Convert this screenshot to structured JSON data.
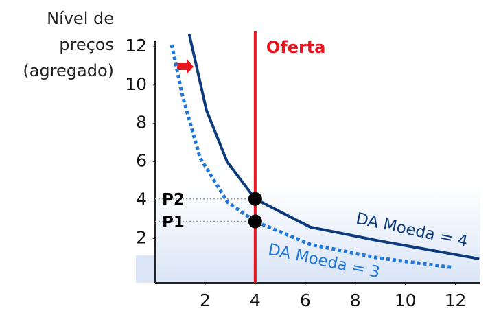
{
  "chart_data": {
    "type": "line",
    "ylabel": [
      "Nível de",
      "preços",
      "(agregado)"
    ],
    "xlim": [
      0,
      13
    ],
    "ylim": [
      -0.3,
      12.6
    ],
    "xticks": [
      2,
      4,
      6,
      8,
      10,
      12
    ],
    "yticks": [
      2,
      4,
      6,
      8,
      10,
      12
    ],
    "series": [
      {
        "name": "DA Moeda = 4",
        "color": "#0d3a7a",
        "dashed": false,
        "x": [
          1.37,
          2.05,
          2.88,
          4,
          6.2,
          8.9,
          12.9
        ],
        "values": [
          12.6,
          8.7,
          6.0,
          4.07,
          2.6,
          1.9,
          0.96
        ]
      },
      {
        "name": "DA Moeda = 3",
        "color": "#1f78d8",
        "dashed": true,
        "x": [
          0.66,
          1.1,
          1.8,
          2.9,
          4,
          6.2,
          8.9,
          11.9
        ],
        "values": [
          12.1,
          9.4,
          6.2,
          3.9,
          2.9,
          1.7,
          1.0,
          0.5
        ]
      }
    ],
    "supply": {
      "label": "Oferta",
      "x": 4,
      "color": "#e8141e"
    },
    "points": [
      {
        "label": "P2",
        "x": 4,
        "y": 4.07
      },
      {
        "label": "P1",
        "x": 4,
        "y": 2.9
      }
    ]
  }
}
